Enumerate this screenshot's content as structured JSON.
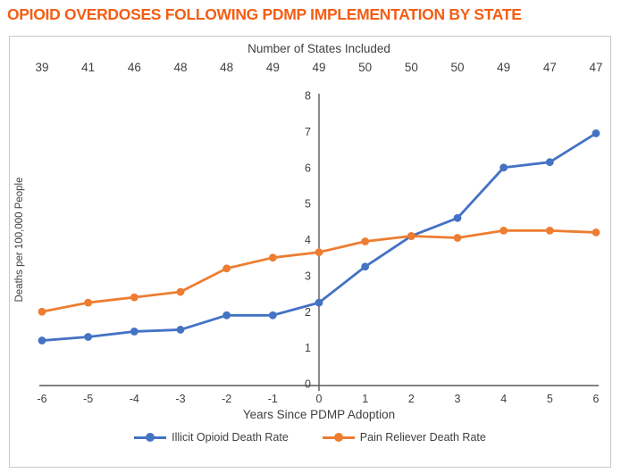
{
  "page": {
    "title": "OPIOID OVERDOSES FOLLOWING PDMP IMPLEMENTATION BY STATE",
    "title_color": "#F45E15"
  },
  "chart_data": {
    "type": "line",
    "top_axis": {
      "label": "Number of States Included",
      "values": [
        39,
        41,
        46,
        48,
        48,
        49,
        49,
        50,
        50,
        50,
        49,
        47,
        47
      ]
    },
    "x": [
      -6,
      -5,
      -4,
      -3,
      -2,
      -1,
      0,
      1,
      2,
      3,
      4,
      5,
      6
    ],
    "x_tick_labels": [
      "-6",
      "-5",
      "-4",
      "-3",
      "-2",
      "-1",
      "0",
      "1",
      "2",
      "3",
      "4",
      "5",
      "6"
    ],
    "xlabel": "Years Since PDMP Adoption",
    "ylabel": "Deaths per 100,000 People",
    "ylim": [
      0,
      8
    ],
    "yticks": [
      0,
      1,
      2,
      3,
      4,
      5,
      6,
      7,
      8
    ],
    "grid": false,
    "y_axis_position": "center-at-x-zero",
    "legend_position": "bottom",
    "series": [
      {
        "name": "Illicit Opioid Death Rate",
        "color": "#4472C4",
        "values": [
          1.2,
          1.3,
          1.45,
          1.5,
          1.9,
          1.9,
          2.25,
          3.25,
          4.1,
          4.6,
          6.0,
          6.15,
          6.95
        ]
      },
      {
        "name": "Pain Reliever Death Rate",
        "color": "#ED7D31",
        "values": [
          2.0,
          2.25,
          2.4,
          2.55,
          3.2,
          3.5,
          3.65,
          3.95,
          4.1,
          4.05,
          4.25,
          4.25,
          4.2
        ]
      }
    ],
    "colors": {
      "axis_line": "#595959",
      "tick_text": "#404040",
      "axis_title_text": "#3f3f3f"
    }
  }
}
